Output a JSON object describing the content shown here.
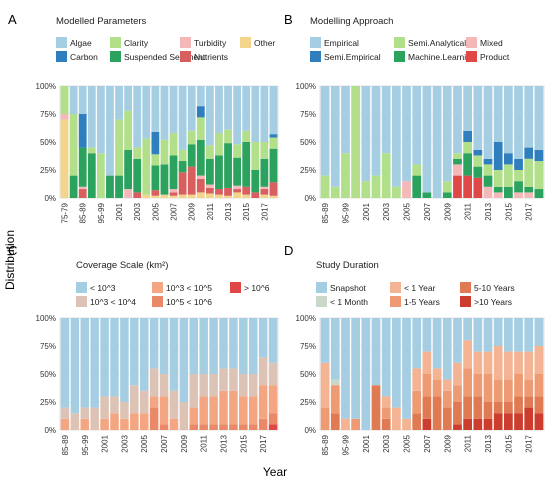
{
  "figure": {
    "ylabel": "Distribution",
    "xlabel": "Year"
  },
  "chart_data": [
    {
      "panel": "A",
      "type": "bar",
      "stacked": true,
      "legend_title": "Modelled Parameters",
      "legend": [
        {
          "name": "Algae",
          "color": "#a6cee3"
        },
        {
          "name": "Carbon",
          "color": "#2f7fbf"
        },
        {
          "name": "Clarity",
          "color": "#b2df8a"
        },
        {
          "name": "Suspended Sediment",
          "color": "#2ca25f"
        },
        {
          "name": "Turbidity",
          "color": "#f4b8b8"
        },
        {
          "name": "Nutrients",
          "color": "#d95f5f"
        },
        {
          "name": "Other",
          "color": "#f2d58a"
        }
      ],
      "yticks": [
        "0%",
        "25%",
        "50%",
        "75%",
        "100%"
      ],
      "xticks": [
        "75-79",
        "85-89",
        "95-99",
        "2001",
        "2003",
        "2005",
        "2007",
        "2009",
        "2011",
        "2013",
        "2015",
        "2017"
      ],
      "categories": [
        "75-79",
        "80-84",
        "85-89",
        "90-94",
        "95-99",
        "2000",
        "2001",
        "2002",
        "2003",
        "2004",
        "2005",
        "2006",
        "2007",
        "2008",
        "2009",
        "2010",
        "2011",
        "2012",
        "2013",
        "2014",
        "2015",
        "2016",
        "2017",
        "2018"
      ],
      "series": [
        {
          "name": "Other",
          "values": [
            70,
            0,
            0,
            0,
            0,
            0,
            0,
            0,
            0,
            3,
            2,
            3,
            2,
            3,
            3,
            5,
            4,
            3,
            2,
            5,
            3,
            0,
            3,
            2
          ]
        },
        {
          "name": "Nutrients",
          "values": [
            0,
            0,
            8,
            0,
            0,
            0,
            0,
            0,
            5,
            0,
            5,
            0,
            3,
            20,
            25,
            12,
            5,
            5,
            7,
            3,
            7,
            5,
            5,
            12
          ]
        },
        {
          "name": "Turbidity",
          "values": [
            5,
            0,
            2,
            0,
            0,
            0,
            0,
            8,
            0,
            0,
            0,
            0,
            3,
            0,
            0,
            3,
            3,
            0,
            0,
            3,
            0,
            0,
            2,
            0
          ]
        },
        {
          "name": "Suspended Sediment",
          "values": [
            0,
            20,
            35,
            40,
            0,
            20,
            20,
            35,
            30,
            0,
            22,
            27,
            30,
            10,
            20,
            32,
            23,
            30,
            40,
            25,
            40,
            20,
            25,
            30
          ]
        },
        {
          "name": "Clarity",
          "values": [
            25,
            55,
            0,
            5,
            40,
            0,
            50,
            35,
            10,
            50,
            10,
            22,
            20,
            10,
            12,
            20,
            12,
            20,
            12,
            12,
            10,
            25,
            15,
            10
          ]
        },
        {
          "name": "Carbon",
          "values": [
            0,
            0,
            30,
            0,
            0,
            0,
            0,
            0,
            0,
            0,
            20,
            0,
            0,
            0,
            0,
            10,
            0,
            0,
            0,
            0,
            0,
            0,
            0,
            3
          ]
        },
        {
          "name": "Algae",
          "values": [
            0,
            25,
            25,
            55,
            60,
            80,
            30,
            22,
            55,
            47,
            41,
            48,
            42,
            57,
            40,
            18,
            53,
            42,
            39,
            52,
            40,
            50,
            50,
            43
          ]
        }
      ]
    },
    {
      "panel": "B",
      "type": "bar",
      "stacked": true,
      "legend_title": "Modelling Approach",
      "legend": [
        {
          "name": "Empirical",
          "color": "#a6cee3"
        },
        {
          "name": "Semi.Empirical",
          "color": "#2f7fbf"
        },
        {
          "name": "Semi.Analytical",
          "color": "#b2df8a"
        },
        {
          "name": "Machine.Learning",
          "color": "#2ca25f"
        },
        {
          "name": "Mixed",
          "color": "#f4b8b8"
        },
        {
          "name": "Product",
          "color": "#e04848"
        }
      ],
      "yticks": [
        "0%",
        "25%",
        "50%",
        "75%",
        "100%"
      ],
      "xticks": [
        "85-89",
        "95-99",
        "2001",
        "2003",
        "2005",
        "2007",
        "2009",
        "2011",
        "2013",
        "2015",
        "2017"
      ],
      "categories": [
        "85-89",
        "90-94",
        "95-99",
        "2000",
        "2001",
        "2002",
        "2003",
        "2004",
        "2005",
        "2006",
        "2007",
        "2008",
        "2009",
        "2010",
        "2011",
        "2012",
        "2013",
        "2014",
        "2015",
        "2016",
        "2017",
        "2018"
      ],
      "series": [
        {
          "name": "Product",
          "values": [
            0,
            0,
            0,
            0,
            0,
            0,
            0,
            0,
            0,
            0,
            0,
            0,
            0,
            20,
            20,
            18,
            0,
            0,
            0,
            0,
            0,
            0
          ]
        },
        {
          "name": "Mixed",
          "values": [
            0,
            0,
            0,
            0,
            0,
            0,
            0,
            0,
            15,
            0,
            0,
            0,
            0,
            10,
            0,
            0,
            10,
            5,
            0,
            5,
            5,
            0
          ]
        },
        {
          "name": "Machine.Learning",
          "values": [
            0,
            0,
            0,
            0,
            0,
            0,
            0,
            0,
            0,
            20,
            5,
            0,
            5,
            5,
            20,
            10,
            10,
            5,
            10,
            10,
            5,
            8
          ]
        },
        {
          "name": "Semi.Analytical",
          "values": [
            20,
            10,
            40,
            100,
            15,
            20,
            40,
            10,
            0,
            10,
            0,
            0,
            10,
            5,
            10,
            10,
            10,
            15,
            20,
            10,
            25,
            25
          ]
        },
        {
          "name": "Semi.Empirical",
          "values": [
            0,
            0,
            0,
            0,
            0,
            0,
            0,
            0,
            0,
            0,
            0,
            0,
            0,
            0,
            10,
            5,
            5,
            25,
            10,
            10,
            10,
            10
          ]
        },
        {
          "name": "Empirical",
          "values": [
            80,
            90,
            60,
            0,
            85,
            80,
            60,
            90,
            85,
            70,
            95,
            100,
            85,
            60,
            40,
            57,
            65,
            50,
            60,
            65,
            55,
            57
          ]
        }
      ]
    },
    {
      "panel": "C",
      "type": "bar",
      "stacked": true,
      "legend_title": "Coverage Scale (km²)",
      "legend": [
        {
          "name": "< 10^3",
          "color": "#a6cee3"
        },
        {
          "name": "10^3 < 10^4",
          "color": "#dcc3b5"
        },
        {
          "name": "10^3 < 10^5",
          "color": "#f4a582"
        },
        {
          "name": "10^5 < 10^6",
          "color": "#e98968"
        },
        {
          "name": "> 10^6",
          "color": "#e04848"
        }
      ],
      "yticks": [
        "0%",
        "25%",
        "50%",
        "75%",
        "100%"
      ],
      "xticks": [
        "85-89",
        "95-99",
        "2001",
        "2003",
        "2005",
        "2007",
        "2009",
        "2011",
        "2013",
        "2015",
        "2017"
      ],
      "categories": [
        "85-89",
        "90-94",
        "95-99",
        "2000",
        "2001",
        "2002",
        "2003",
        "2004",
        "2005",
        "2006",
        "2007",
        "2008",
        "2009",
        "2010",
        "2011",
        "2012",
        "2013",
        "2014",
        "2015",
        "2016",
        "2017",
        "2018"
      ],
      "series": [
        {
          "name": "> 10^6",
          "values": [
            0,
            0,
            0,
            0,
            0,
            0,
            0,
            0,
            0,
            0,
            0,
            0,
            0,
            0,
            0,
            0,
            0,
            0,
            0,
            0,
            0,
            5
          ]
        },
        {
          "name": "10^5 < 10^6",
          "values": [
            0,
            0,
            0,
            0,
            0,
            0,
            0,
            0,
            0,
            20,
            5,
            0,
            0,
            5,
            5,
            5,
            5,
            5,
            5,
            5,
            10,
            10
          ]
        },
        {
          "name": "10^3 < 10^5",
          "values": [
            10,
            0,
            10,
            0,
            10,
            15,
            10,
            15,
            15,
            10,
            25,
            10,
            0,
            15,
            25,
            25,
            30,
            30,
            25,
            25,
            30,
            25
          ]
        },
        {
          "name": "10^3 < 10^4",
          "values": [
            10,
            15,
            10,
            20,
            20,
            15,
            15,
            25,
            20,
            25,
            20,
            25,
            25,
            30,
            20,
            20,
            20,
            20,
            20,
            20,
            25,
            20
          ]
        },
        {
          "name": "< 10^3",
          "values": [
            80,
            85,
            80,
            80,
            70,
            70,
            75,
            60,
            65,
            45,
            50,
            65,
            75,
            50,
            50,
            50,
            45,
            45,
            50,
            50,
            35,
            40
          ]
        }
      ]
    },
    {
      "panel": "D",
      "type": "bar",
      "stacked": true,
      "legend_title": "Study Duration",
      "legend": [
        {
          "name": "Snapshot",
          "color": "#a6cee3"
        },
        {
          "name": "< 1 Month",
          "color": "#c9d8c9"
        },
        {
          "name": "< 1 Year",
          "color": "#f4b393"
        },
        {
          "name": "1-5 Years",
          "color": "#ee9a72"
        },
        {
          "name": "5-10 Years",
          "color": "#e07a52"
        },
        {
          "name": ">10 Years",
          "color": "#cc3d2e"
        }
      ],
      "yticks": [
        "0%",
        "25%",
        "50%",
        "75%",
        "100%"
      ],
      "xticks": [
        "85-89",
        "95-99",
        "2001",
        "2003",
        "2005",
        "2007",
        "2009",
        "2011",
        "2013",
        "2015",
        "2017"
      ],
      "categories": [
        "85-89",
        "90-94",
        "95-99",
        "2000",
        "2001",
        "2002",
        "2003",
        "2004",
        "2005",
        "2006",
        "2007",
        "2008",
        "2009",
        "2010",
        "2011",
        "2012",
        "2013",
        "2014",
        "2015",
        "2016",
        "2017",
        "2018"
      ],
      "series": [
        {
          "name": ">10 Years",
          "values": [
            0,
            0,
            0,
            0,
            0,
            0,
            0,
            0,
            0,
            0,
            10,
            0,
            0,
            5,
            10,
            10,
            10,
            15,
            15,
            15,
            20,
            15
          ]
        },
        {
          "name": "5-10 Years",
          "values": [
            0,
            15,
            0,
            0,
            0,
            40,
            10,
            0,
            0,
            15,
            20,
            30,
            20,
            20,
            20,
            20,
            15,
            10,
            10,
            15,
            10,
            15
          ]
        },
        {
          "name": "1-5 Years",
          "values": [
            20,
            25,
            0,
            10,
            0,
            0,
            10,
            0,
            0,
            20,
            20,
            15,
            15,
            15,
            25,
            20,
            25,
            20,
            20,
            20,
            15,
            20
          ]
        },
        {
          "name": "< 1 Year",
          "values": [
            40,
            0,
            10,
            0,
            0,
            0,
            10,
            20,
            10,
            20,
            20,
            10,
            10,
            20,
            25,
            20,
            20,
            30,
            25,
            20,
            25,
            25
          ]
        },
        {
          "name": "< 1 Month",
          "values": [
            0,
            5,
            0,
            0,
            0,
            0,
            0,
            0,
            0,
            0,
            0,
            0,
            0,
            0,
            0,
            0,
            0,
            0,
            0,
            0,
            0,
            0
          ]
        },
        {
          "name": "Snapshot",
          "values": [
            40,
            55,
            90,
            90,
            100,
            60,
            70,
            80,
            90,
            45,
            30,
            45,
            55,
            40,
            20,
            30,
            30,
            25,
            30,
            30,
            30,
            25
          ]
        }
      ]
    }
  ]
}
